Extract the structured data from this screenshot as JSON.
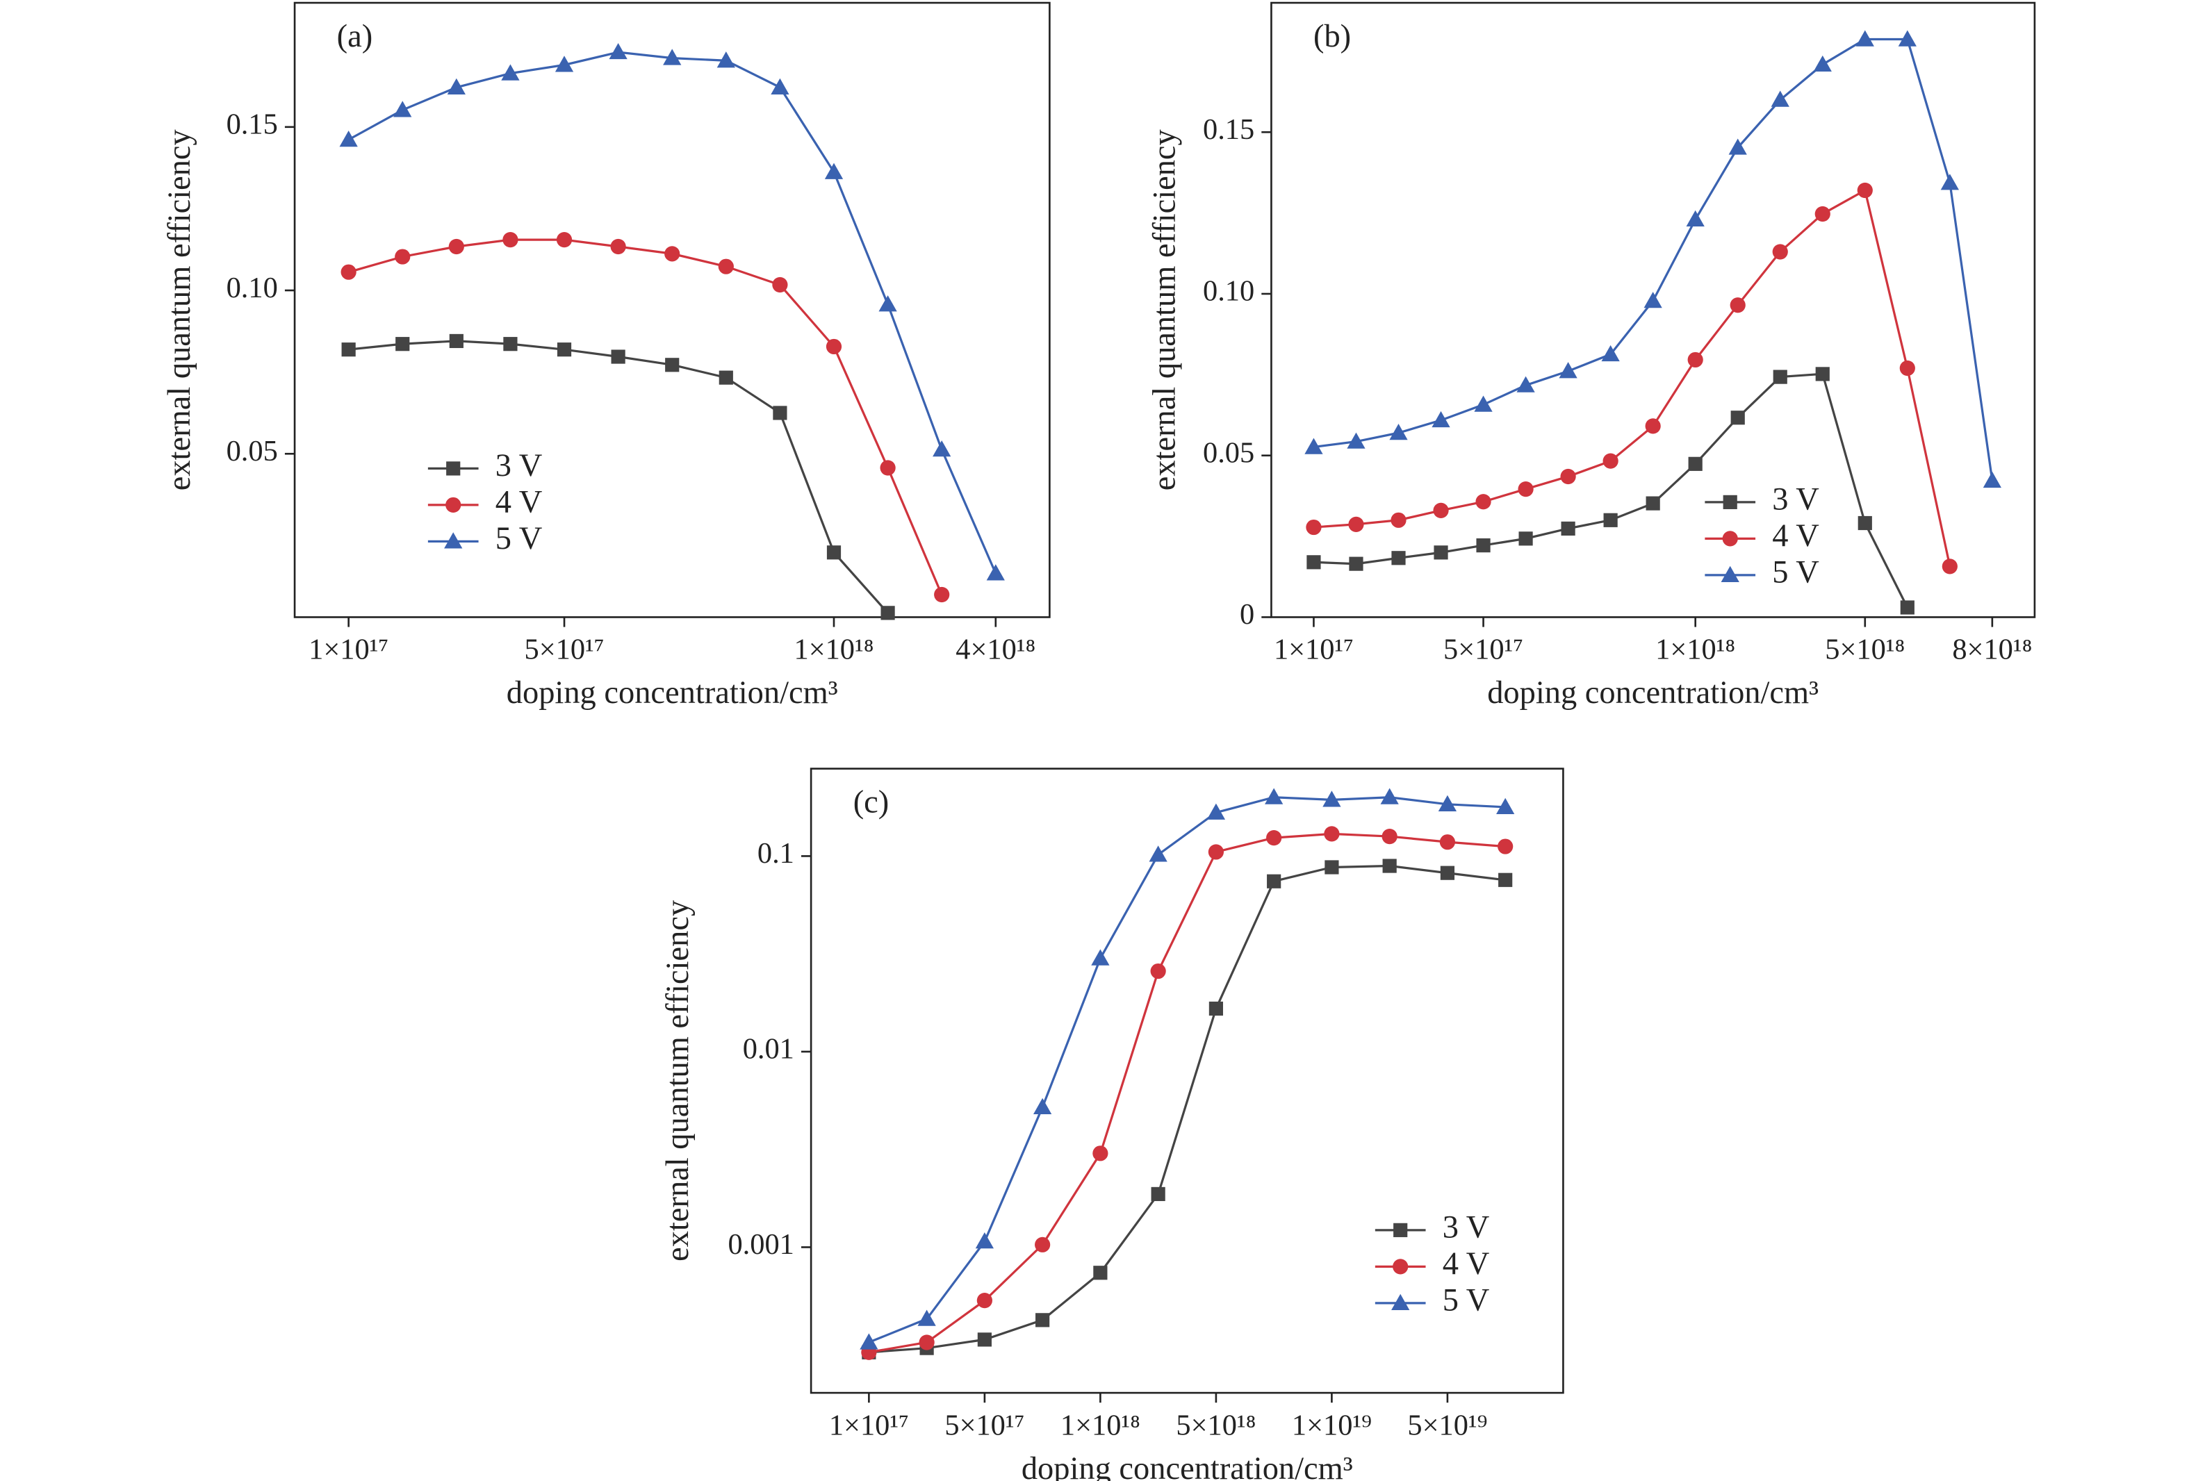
{
  "chart_data": [
    {
      "type": "line",
      "label": "(a)",
      "xlabel": "doping concentration/cm³",
      "ylabel": "external quantum efficiency",
      "categories": [
        "1×10¹⁷",
        null,
        null,
        null,
        "5×10¹⁷",
        null,
        null,
        null,
        null,
        "1×10¹⁸",
        null,
        null,
        "4×10¹⁸"
      ],
      "ylim": [
        0,
        0.188
      ],
      "yticks": [
        0.05,
        {
          "value": 0.1,
          "label": "0.10"
        },
        0.15
      ],
      "legend": "lower left",
      "series": [
        {
          "name": "3 V",
          "color": "#444444",
          "marker": "square",
          "values": [
            0.0819,
            0.0836,
            0.0845,
            0.0836,
            0.0819,
            0.0797,
            0.0772,
            0.0733,
            0.0625,
            0.0198,
            0.0013,
            null,
            null
          ]
        },
        {
          "name": "4 V",
          "color": "#d0343d",
          "marker": "circle",
          "values": [
            0.1056,
            0.1103,
            0.1134,
            0.1155,
            0.1155,
            0.1134,
            0.1112,
            0.1073,
            0.1017,
            0.0828,
            0.0457,
            0.0069,
            null
          ]
        },
        {
          "name": "5 V",
          "color": "#3a62b0",
          "marker": "triangle",
          "values": [
            0.1461,
            0.1552,
            0.1621,
            0.1664,
            0.169,
            0.1729,
            0.1711,
            0.1703,
            0.1621,
            0.1362,
            0.0957,
            0.0513,
            0.0134
          ]
        }
      ]
    },
    {
      "type": "line",
      "label": "(b)",
      "xlabel": "doping concentration/cm³",
      "ylabel": "external quantum efficiency",
      "categories": [
        "1×10¹⁷",
        null,
        null,
        null,
        "5×10¹⁷",
        null,
        null,
        null,
        null,
        "1×10¹⁸",
        null,
        null,
        null,
        "5×10¹⁸",
        null,
        null,
        "8×10¹⁸"
      ],
      "ylim": [
        0,
        0.19
      ],
      "yticks": [
        0,
        0.05,
        {
          "value": 0.1,
          "label": "0.10"
        },
        0.15
      ],
      "legend": "lower right",
      "series": [
        {
          "name": "3 V",
          "color": "#444444",
          "marker": "square",
          "values": [
            0.017,
            0.0165,
            0.0183,
            0.02,
            0.0222,
            0.0243,
            0.0274,
            0.03,
            0.0352,
            0.0474,
            0.0617,
            0.0743,
            0.0752,
            0.0291,
            0.003,
            null,
            null
          ]
        },
        {
          "name": "4 V",
          "color": "#d0343d",
          "marker": "circle",
          "values": [
            0.0278,
            0.0287,
            0.03,
            0.033,
            0.0357,
            0.0396,
            0.0435,
            0.0483,
            0.0591,
            0.0796,
            0.0965,
            0.113,
            0.1247,
            0.132,
            0.077,
            0.0157,
            null
          ]
        },
        {
          "name": "5 V",
          "color": "#3a62b0",
          "marker": "triangle",
          "values": [
            0.0526,
            0.0543,
            0.057,
            0.0609,
            0.0657,
            0.0717,
            0.0761,
            0.0813,
            0.0978,
            0.123,
            0.1452,
            0.16,
            0.1709,
            0.1787,
            0.1787,
            0.1343,
            0.0422
          ]
        }
      ]
    },
    {
      "type": "line",
      "label": "(c)",
      "xlabel": "doping concentration/cm³",
      "ylabel": "external quantum efficiency",
      "categories": [
        "1×10¹⁷",
        null,
        "5×10¹⁷",
        null,
        "1×10¹⁸",
        null,
        "5×10¹⁸",
        null,
        "1×10¹⁹",
        null,
        "5×10¹⁹",
        null
      ],
      "yscale": "log",
      "ylim": [
        0.00018,
        0.28
      ],
      "yticks": [
        0.001,
        0.01,
        0.1
      ],
      "legend": "lower right",
      "series": [
        {
          "name": "3 V",
          "color": "#444444",
          "marker": "square",
          "values": [
            0.00029,
            0.000305,
            0.000337,
            0.000424,
            0.00074,
            0.00187,
            0.0166,
            0.0743,
            0.0877,
            0.0891,
            0.082,
            0.0755
          ]
        },
        {
          "name": "4 V",
          "color": "#d0343d",
          "marker": "circle",
          "values": [
            0.00029,
            0.000326,
            0.000534,
            0.00103,
            0.00302,
            0.0258,
            0.105,
            0.124,
            0.13,
            0.126,
            0.118,
            0.112
          ]
        },
        {
          "name": "5 V",
          "color": "#3a62b0",
          "marker": "triangle",
          "values": [
            0.000326,
            0.00043,
            0.00107,
            0.0052,
            0.03,
            0.1017,
            0.167,
            0.2,
            0.194,
            0.2,
            0.184,
            0.178
          ]
        }
      ]
    }
  ]
}
